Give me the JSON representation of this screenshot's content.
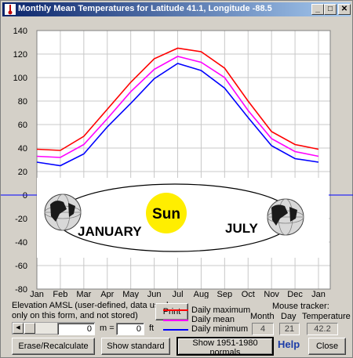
{
  "window": {
    "title": "Monthly Mean Temperatures for Latitude 41.1, Longitude -88.5",
    "min_glyph": "_",
    "max_glyph": "□",
    "close_glyph": "✕",
    "title_icon": "thermometer-app-icon"
  },
  "chart_data": {
    "type": "line",
    "categories": [
      "Jan",
      "Feb",
      "Mar",
      "Apr",
      "May",
      "Jun",
      "Jul",
      "Aug",
      "Sep",
      "Oct",
      "Nov",
      "Dec",
      "Jan"
    ],
    "yticks": [
      140,
      120,
      100,
      80,
      60,
      40,
      20,
      0,
      -20,
      -40,
      -60,
      -80
    ],
    "ylim": [
      -80,
      140
    ],
    "grid": true,
    "series": [
      {
        "name": "Daily maximum",
        "color": "#ff0000",
        "values": [
          39,
          38,
          50,
          73,
          96,
          116,
          125,
          122,
          108,
          80,
          54,
          43,
          39
        ]
      },
      {
        "name": "Daily mean",
        "color": "#ff00ff",
        "values": [
          33,
          32,
          43,
          65,
          88,
          107,
          118,
          113,
          100,
          72,
          48,
          37,
          33
        ]
      },
      {
        "name": "Daily minimum",
        "color": "#0000ff",
        "values": [
          28,
          25,
          35,
          58,
          78,
          99,
          112,
          106,
          91,
          66,
          42,
          31,
          28
        ]
      }
    ],
    "series_colors": {
      "max": "#ff0000",
      "mean": "#ff00ff",
      "min": "#0000ff"
    },
    "zero_line_color": "#0000ff",
    "annotations": {
      "sun": "Sun",
      "left": "JANUARY",
      "right": "JULY"
    },
    "sun_color": "#ffee00"
  },
  "controls": {
    "elevation_label_line1": "Elevation AMSL (user-defined, data used",
    "elevation_label_line2": "only on this form, and  not stored)",
    "meters_label": "m =",
    "meters_value": "0",
    "feet_value": "0",
    "feet_label": "ft",
    "print_label": "Print",
    "legend": {
      "max": "Daily maximum",
      "mean": "Daily mean",
      "min": "Daily minimum"
    },
    "mouse_tracker": {
      "title": "Mouse tracker:",
      "month_label": "Month",
      "day_label": "Day",
      "temp_label": "Temperature",
      "month_value": "4",
      "day_value": "21",
      "temp_value": "42.2"
    },
    "buttons": {
      "erase": "Erase/Recalculate",
      "standard": "Show standard",
      "normals": "Show 1951-1980 normals",
      "help": "Help",
      "close": "Close"
    }
  }
}
